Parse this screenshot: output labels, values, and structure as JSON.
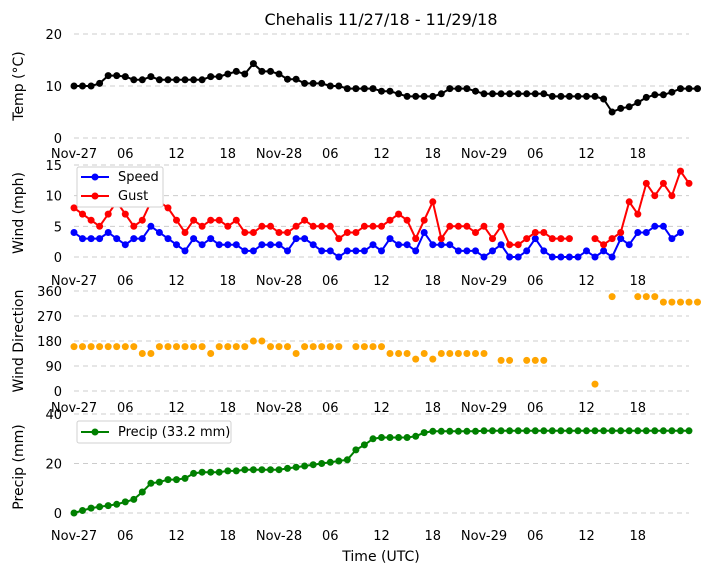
{
  "chart_data": [
    {
      "type": "line",
      "title": "Chehalis 11/27/18 - 11/29/18",
      "ylabel": "Temp (°C)",
      "ylim": [
        0,
        20
      ],
      "yticks": [
        0,
        10,
        20
      ],
      "grid": true,
      "series": [
        {
          "color": "#000000",
          "start_hour": 0,
          "values": [
            10,
            10,
            10,
            10.5,
            12,
            12,
            11.8,
            11.2,
            11.2,
            11.8,
            11.2,
            11.2,
            11.2,
            11.2,
            11.2,
            11.2,
            11.8,
            11.8,
            12.3,
            12.8,
            12.3,
            14.3,
            12.8,
            12.8,
            12.3,
            11.3,
            11.3,
            10.5,
            10.5,
            10.5,
            10,
            10,
            9.5,
            9.5,
            9.5,
            9.5,
            9,
            9,
            8.5,
            8,
            8,
            8,
            8,
            8.5,
            9.5,
            9.5,
            9.5,
            9,
            8.5,
            8.5,
            8.5,
            8.5,
            8.5,
            8.5,
            8.5,
            8.5,
            8,
            8,
            8,
            8,
            8,
            8,
            7.5,
            5,
            5.7,
            6,
            6.8,
            7.8,
            8.3,
            8.3,
            8.8,
            9.5,
            9.5,
            9.5
          ]
        }
      ]
    },
    {
      "type": "line",
      "ylabel": "Wind (mph)",
      "ylim": [
        0,
        15
      ],
      "yticks": [
        0,
        5,
        10,
        15
      ],
      "grid": true,
      "legend": "top-left",
      "series": [
        {
          "name": "Speed",
          "color": "#0000ff",
          "start_hour": 0,
          "values": [
            4,
            3,
            3,
            3,
            4,
            3,
            2,
            3,
            3,
            5,
            4,
            3,
            2,
            1,
            3,
            2,
            3,
            2,
            2,
            2,
            1,
            1,
            2,
            2,
            2,
            1,
            3,
            3,
            2,
            1,
            1,
            0,
            1,
            1,
            1,
            2,
            1,
            3,
            2,
            2,
            1,
            4,
            2,
            2,
            2,
            1,
            1,
            1,
            0,
            1,
            2,
            0,
            0,
            1,
            3,
            1,
            0,
            0,
            0,
            0,
            1,
            0,
            1,
            0,
            3,
            2,
            4,
            4,
            5,
            5,
            3,
            4
          ]
        },
        {
          "name": "Gust",
          "color": "#ff0000",
          "start_hour": 0,
          "values": [
            8,
            7,
            6,
            5,
            7,
            9,
            7,
            5,
            6,
            9,
            9,
            8,
            6,
            4,
            6,
            5,
            6,
            6,
            5,
            6,
            4,
            4,
            5,
            5,
            4,
            4,
            5,
            6,
            5,
            5,
            5,
            3,
            4,
            4,
            5,
            5,
            5,
            6,
            7,
            6,
            3,
            6,
            9,
            3,
            5,
            5,
            5,
            4,
            5,
            3,
            5,
            2,
            2,
            3,
            4,
            4,
            3,
            3,
            3,
            null,
            null,
            3,
            2,
            3,
            4,
            9,
            7,
            12,
            10,
            12,
            10,
            14,
            12
          ]
        }
      ]
    },
    {
      "type": "scatter",
      "ylabel": "Wind Direction",
      "ylim": [
        0,
        360
      ],
      "yticks": [
        0,
        90,
        180,
        270,
        360
      ],
      "grid": true,
      "series": [
        {
          "color": "#ffa500",
          "start_hour": 0,
          "values": [
            160,
            160,
            160,
            160,
            160,
            160,
            160,
            160,
            135,
            135,
            160,
            160,
            160,
            160,
            160,
            160,
            135,
            160,
            160,
            160,
            160,
            180,
            180,
            160,
            160,
            160,
            135,
            160,
            160,
            160,
            160,
            160,
            null,
            160,
            160,
            160,
            160,
            135,
            135,
            135,
            115,
            135,
            115,
            135,
            135,
            135,
            135,
            135,
            135,
            null,
            110,
            110,
            null,
            110,
            110,
            110,
            null,
            null,
            null,
            null,
            null,
            25,
            null,
            340,
            null,
            null,
            340,
            340,
            340,
            320,
            320,
            320,
            320,
            320
          ]
        }
      ]
    },
    {
      "type": "line",
      "ylabel": "Precip (mm)",
      "xlabel": "Time (UTC)",
      "ylim": [
        0,
        40
      ],
      "yticks": [
        0,
        20,
        40
      ],
      "grid": true,
      "legend": "top-left",
      "series": [
        {
          "name": "Precip (33.2 mm)",
          "color": "#008000",
          "start_hour": 0,
          "values": [
            0,
            1,
            2,
            2.5,
            3,
            3.5,
            4.5,
            5.5,
            8.5,
            12,
            12.5,
            13.5,
            13.5,
            14,
            16,
            16.5,
            16.5,
            16.5,
            17,
            17,
            17.5,
            17.5,
            17.5,
            17.5,
            17.5,
            18,
            18.5,
            19,
            19.5,
            20,
            20.5,
            21,
            21.5,
            25.5,
            27.5,
            30,
            30.5,
            30.5,
            30.5,
            30.5,
            31,
            32.5,
            33,
            33,
            33,
            33,
            33,
            33,
            33.2,
            33.2,
            33.2,
            33.2,
            33.2,
            33.2,
            33.2,
            33.2,
            33.2,
            33.2,
            33.2,
            33.2,
            33.2,
            33.2,
            33.2,
            33.2,
            33.2,
            33.2,
            33.2,
            33.2,
            33.2,
            33.2,
            33.2,
            33.2,
            33.2
          ]
        }
      ]
    }
  ],
  "x_axis": {
    "tick_labels": [
      "Nov-27",
      "06",
      "12",
      "18",
      "Nov-28",
      "06",
      "12",
      "18",
      "Nov-29",
      "06",
      "12",
      "18"
    ],
    "tick_hours": [
      0,
      6,
      12,
      18,
      24,
      30,
      36,
      42,
      48,
      54,
      60,
      66
    ],
    "range_hours": [
      0,
      72
    ]
  }
}
